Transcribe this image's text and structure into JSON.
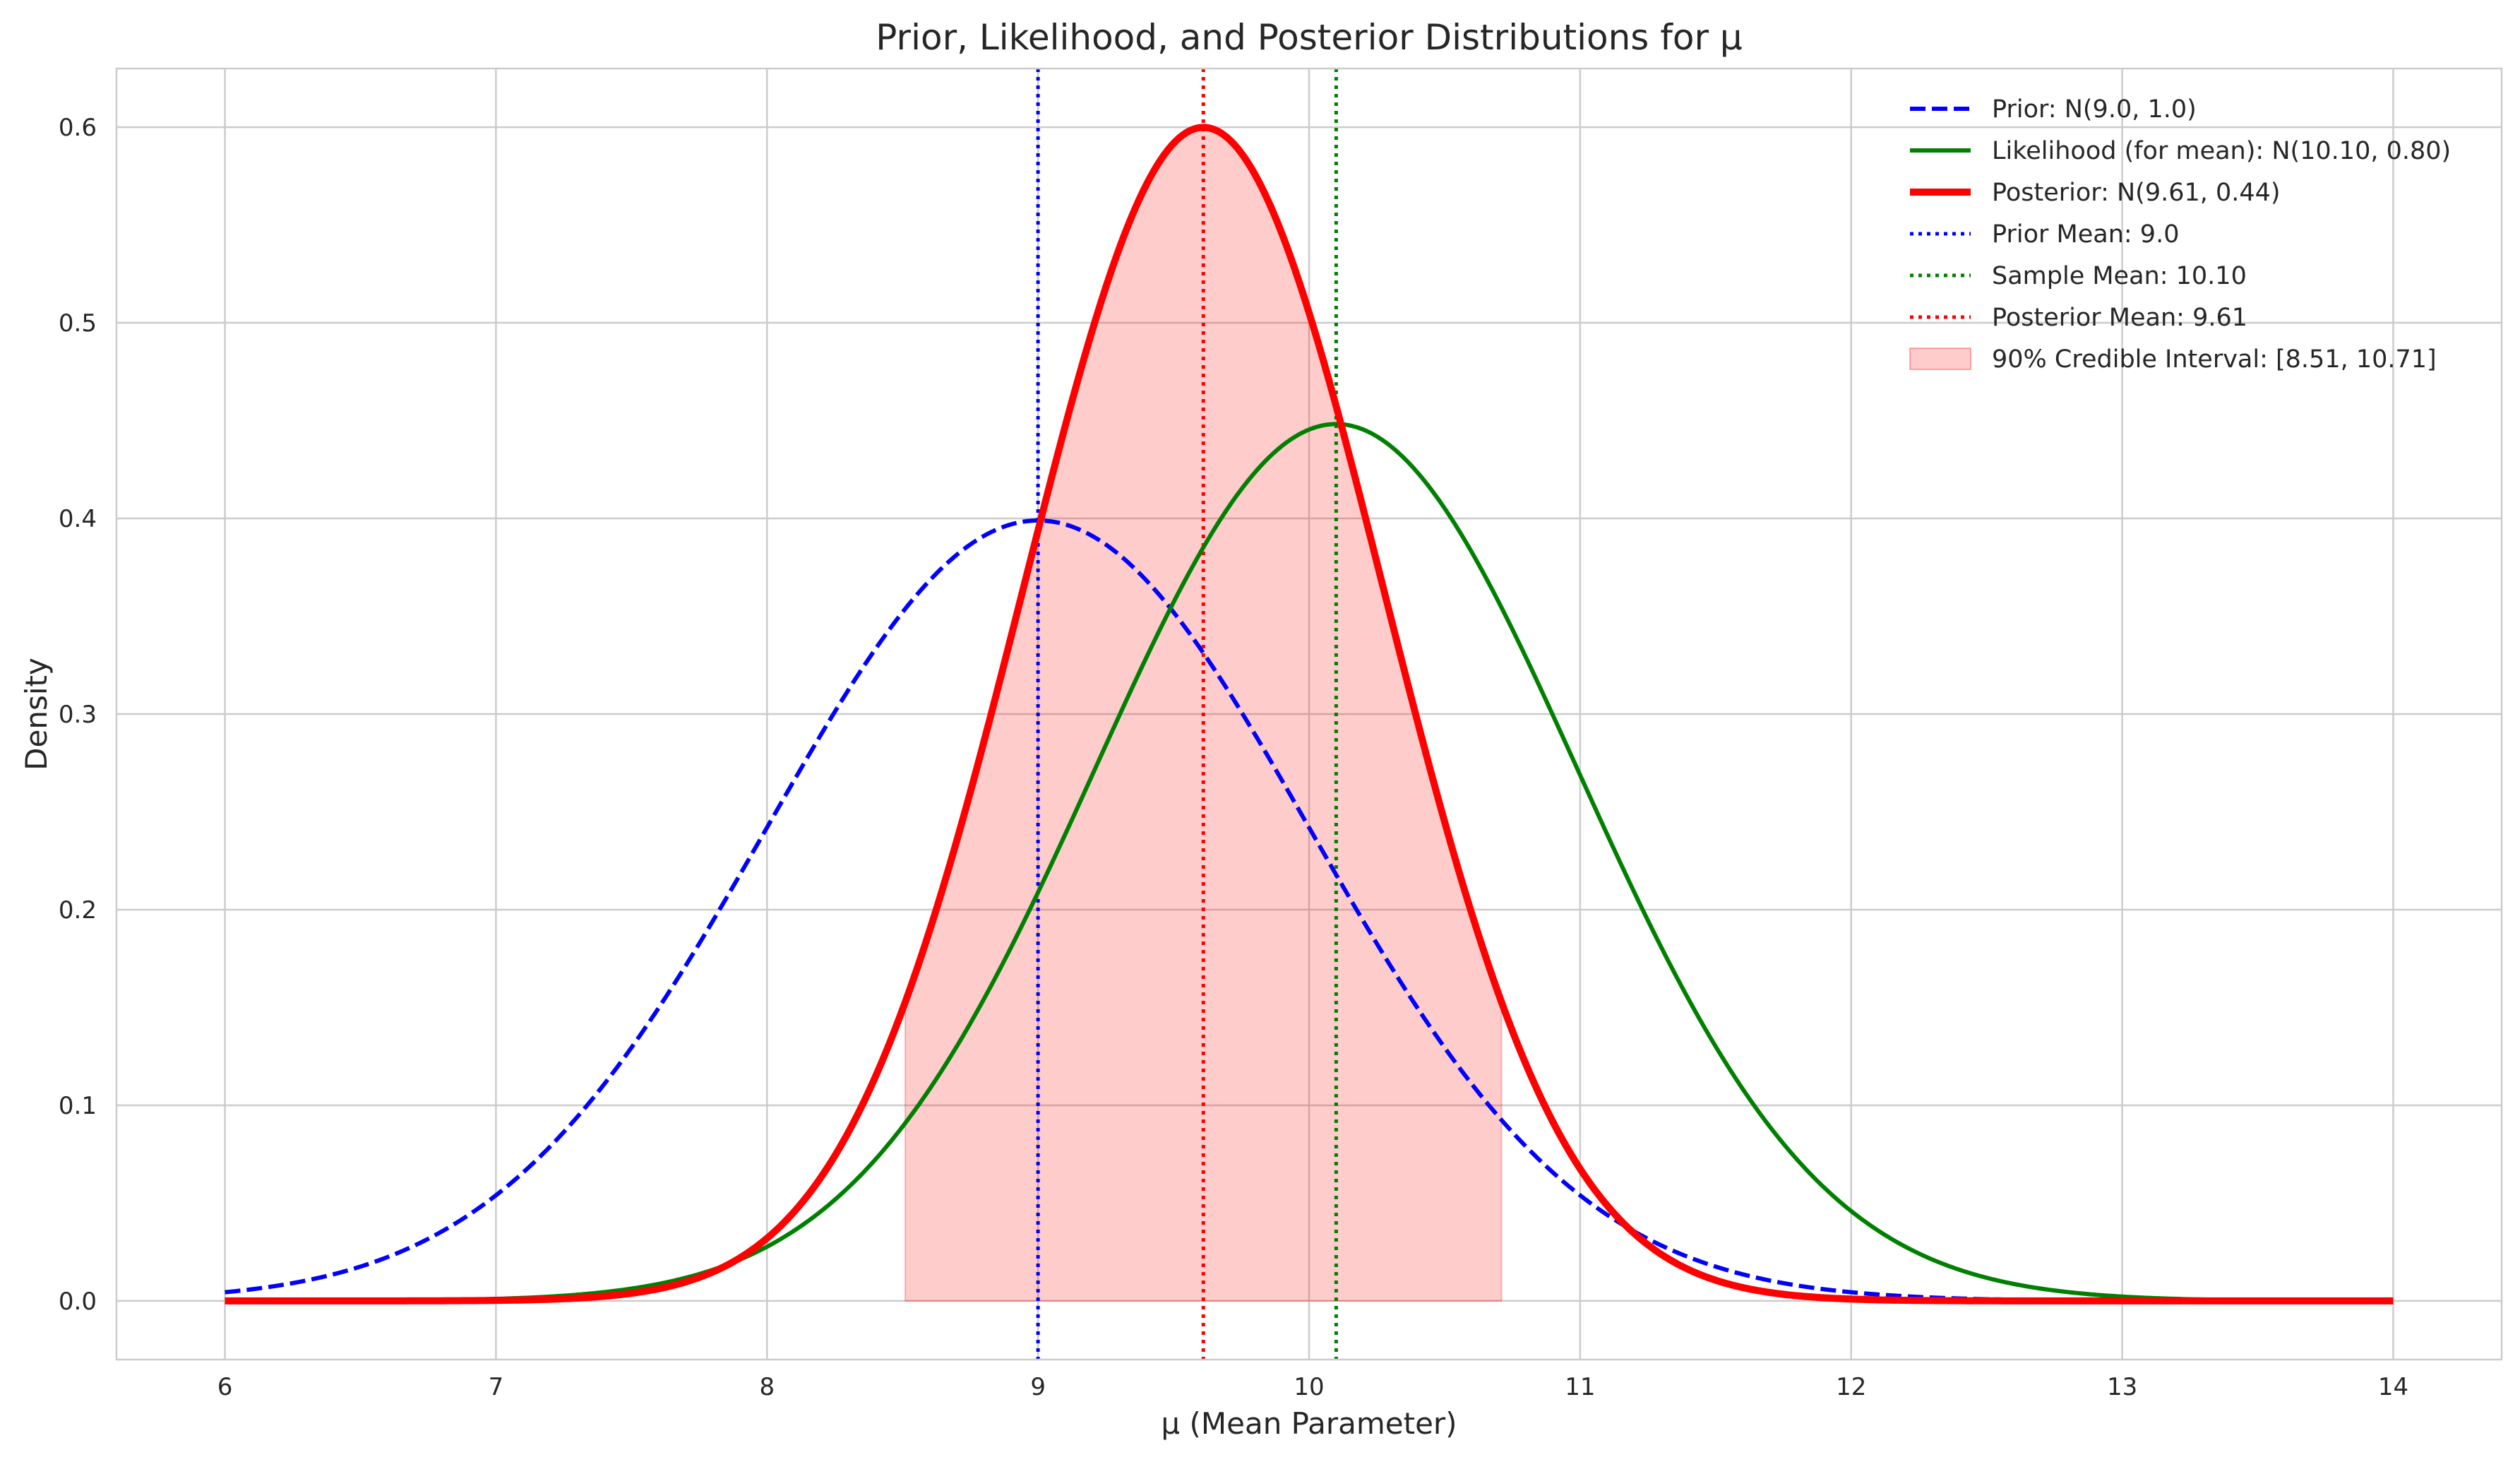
{
  "chart_data": {
    "type": "line",
    "title": "Prior, Likelihood, and Posterior Distributions for μ",
    "xlabel": "μ (Mean Parameter)",
    "ylabel": "Density",
    "xlim": [
      5.6,
      14.4
    ],
    "ylim": [
      -0.03,
      0.63
    ],
    "x_ticks": [
      6,
      7,
      8,
      9,
      10,
      11,
      12,
      13,
      14
    ],
    "y_ticks": [
      0.0,
      0.1,
      0.2,
      0.3,
      0.4,
      0.5,
      0.6
    ],
    "x_tick_labels": [
      "6",
      "7",
      "8",
      "9",
      "10",
      "11",
      "12",
      "13",
      "14"
    ],
    "y_tick_labels": [
      "0.0",
      "0.1",
      "0.2",
      "0.3",
      "0.4",
      "0.5",
      "0.6"
    ],
    "grid": true,
    "legend_position": "top-right",
    "series": [
      {
        "name": "Prior: N(9.0, 1.0)",
        "distribution": "normal",
        "mean": 9.0,
        "sd": 1.0,
        "x_range": [
          6,
          14
        ],
        "color": "#0000ff",
        "style": "dashed"
      },
      {
        "name": "Likelihood (for mean): N(10.10, 0.80)",
        "distribution": "normal",
        "mean": 10.1,
        "sd": 0.89,
        "x_range": [
          6,
          14
        ],
        "color": "#008000",
        "style": "solid"
      },
      {
        "name": "Posterior: N(9.61, 0.44)",
        "distribution": "normal",
        "mean": 9.61,
        "sd": 0.665,
        "x_range": [
          6,
          14
        ],
        "color": "#ff0000",
        "style": "solid-thick"
      }
    ],
    "vlines": [
      {
        "name": "Prior Mean: 9.0",
        "x": 9.0,
        "color": "#0000ff",
        "style": "dotted"
      },
      {
        "name": "Sample Mean: 10.10",
        "x": 10.1,
        "color": "#008000",
        "style": "dotted"
      },
      {
        "name": "Posterior Mean: 9.61",
        "x": 9.61,
        "color": "#ff0000",
        "style": "dotted"
      }
    ],
    "interval": {
      "name": "90% Credible Interval: [8.51, 10.71]",
      "lower": 8.51,
      "upper": 10.71,
      "color": "#ff0000",
      "opacity": 0.2
    }
  }
}
